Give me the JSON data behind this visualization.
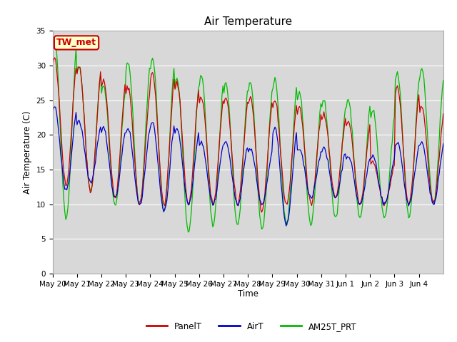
{
  "title": "Air Temperature",
  "ylabel": "Air Temperature (C)",
  "xlabel": "Time",
  "ylim": [
    0,
    35
  ],
  "yticks": [
    0,
    5,
    10,
    15,
    20,
    25,
    30,
    35
  ],
  "bg_color": "#d8d8d8",
  "fig_bg": "#ffffff",
  "line_colors": {
    "PanelT": "#cc0000",
    "AirT": "#0000cc",
    "AM25T_PRT": "#00bb00"
  },
  "legend_label": "TW_met",
  "legend_box_bg": "#ffffcc",
  "legend_box_edge": "#cc0000",
  "date_labels": [
    "May 20",
    "May 21",
    "May 22",
    "May 23",
    "May 24",
    "May 25",
    "May 26",
    "May 27",
    "May 28",
    "May 29",
    "May 30",
    "May 31",
    "Jun 1",
    "Jun 2",
    "Jun 3",
    "Jun 4"
  ],
  "date_positions": [
    0,
    1,
    2,
    3,
    4,
    5,
    6,
    7,
    8,
    9,
    10,
    11,
    12,
    13,
    14,
    15
  ],
  "panel_peaks": [
    31,
    30,
    28,
    27,
    29,
    27.5,
    25.5,
    25.5,
    25.5,
    25,
    24,
    23,
    22,
    16,
    27,
    24
  ],
  "panel_mins": [
    13,
    12,
    11,
    10,
    10,
    10,
    10,
    10,
    9,
    10,
    10,
    11,
    10,
    10,
    10,
    10
  ],
  "air_peaks": [
    24,
    22,
    21,
    21,
    22,
    21,
    19,
    19,
    18,
    21,
    18,
    18,
    17,
    17,
    19,
    19
  ],
  "air_mins": [
    12,
    13,
    11,
    10,
    9,
    10,
    10,
    10,
    10,
    7,
    11,
    11,
    10,
    10,
    10,
    10
  ],
  "am25_peaks": [
    34,
    30,
    27,
    30.5,
    31,
    28,
    28.5,
    27.5,
    27.5,
    28,
    26,
    25,
    25,
    23.5,
    29,
    29.5
  ],
  "am25_mins": [
    8,
    12,
    10,
    10,
    9,
    6,
    7,
    7,
    6.5,
    7,
    7,
    8,
    8,
    8,
    8,
    10
  ]
}
